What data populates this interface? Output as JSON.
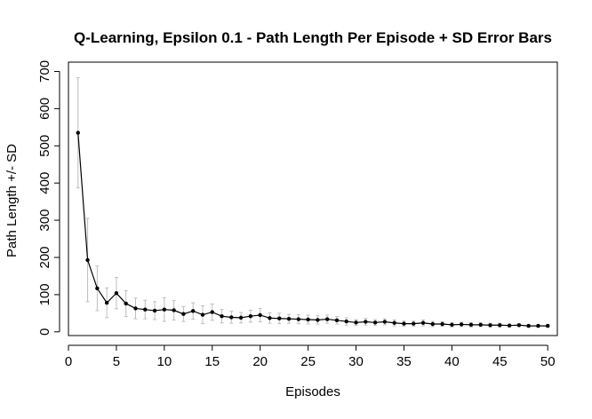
{
  "chart_data": {
    "type": "line",
    "title": "Q-Learning, Epsilon 0.1 - Path Length Per Episode + SD Error Bars",
    "xlabel": "Episodes",
    "ylabel": "Path Length +/- SD",
    "xlim": [
      0,
      51
    ],
    "ylim": [
      -10,
      725
    ],
    "xticks": [
      0,
      5,
      10,
      15,
      20,
      25,
      30,
      35,
      40,
      45,
      50
    ],
    "yticks": [
      0,
      100,
      200,
      300,
      400,
      500,
      600,
      700
    ],
    "grid": false,
    "legend": "none",
    "series": [
      {
        "x": [
          1,
          2,
          3,
          4,
          5,
          6,
          7,
          8,
          9,
          10,
          11,
          12,
          13,
          14,
          15,
          16,
          17,
          18,
          19,
          20,
          21,
          22,
          23,
          24,
          25,
          26,
          27,
          28,
          29,
          30,
          31,
          32,
          33,
          34,
          35,
          36,
          37,
          38,
          39,
          40,
          41,
          42,
          43,
          44,
          45,
          46,
          47,
          48,
          49,
          50
        ],
        "values": [
          535,
          193,
          117,
          78,
          104,
          76,
          63,
          60,
          57,
          60,
          58,
          48,
          56,
          46,
          53,
          42,
          39,
          38,
          42,
          45,
          37,
          36,
          35,
          34,
          33,
          32,
          34,
          31,
          28,
          25,
          27,
          25,
          27,
          24,
          22,
          22,
          24,
          21,
          21,
          19,
          20,
          19,
          19,
          18,
          18,
          17,
          18,
          16,
          16,
          16
        ],
        "sd": [
          148,
          112,
          60,
          40,
          42,
          35,
          28,
          25,
          24,
          32,
          26,
          20,
          22,
          24,
          22,
          18,
          16,
          14,
          16,
          18,
          14,
          14,
          12,
          12,
          12,
          11,
          11,
          10,
          10,
          8,
          9,
          8,
          8,
          8,
          7,
          7,
          8,
          7,
          6,
          6,
          6,
          6,
          5,
          5,
          5,
          4,
          4,
          4,
          4,
          4
        ]
      }
    ],
    "colors": {
      "line": "#000000",
      "error_bar": "#bebebe",
      "frame": "#000000"
    }
  }
}
